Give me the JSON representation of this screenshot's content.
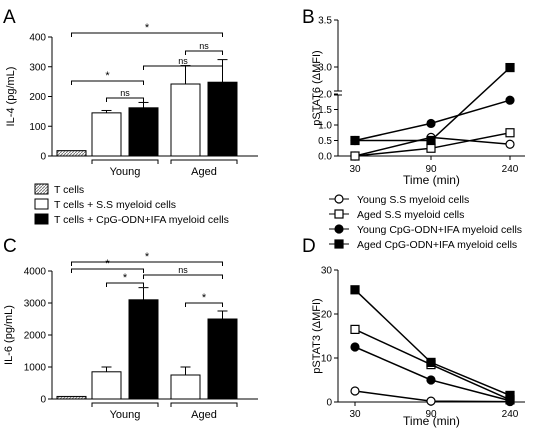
{
  "chart_data": [
    {
      "panel": "A",
      "type": "bar",
      "ylabel": "IL-4 (pg/mL)",
      "ylim": [
        0,
        400
      ],
      "yticks": [
        "0",
        "100",
        "200",
        "300",
        "400"
      ],
      "groups": [
        "Young",
        "Aged"
      ],
      "bars": [
        {
          "series": "T cells",
          "value": 18,
          "error": 0
        },
        {
          "series": "T cells + S.S myeloid cells",
          "group": "Young",
          "value": 145,
          "error": 8
        },
        {
          "series": "T cells + CpG-ODN+IFA myeloid cells",
          "group": "Young",
          "value": 162,
          "error": 18
        },
        {
          "series": "T cells + S.S myeloid cells",
          "group": "Aged",
          "value": 242,
          "error": 62
        },
        {
          "series": "T cells + CpG-ODN+IFA myeloid cells",
          "group": "Aged",
          "value": 248,
          "error": 76
        }
      ],
      "significance": [
        {
          "from": 0,
          "to": 4,
          "label": "*"
        },
        {
          "from": 2,
          "to": 4,
          "label": "ns"
        },
        {
          "from": 3,
          "to": 4,
          "label": "ns"
        },
        {
          "from": 0,
          "to": 2,
          "label": "*"
        },
        {
          "from": 1,
          "to": 2,
          "label": "ns"
        }
      ]
    },
    {
      "panel": "B",
      "type": "line",
      "ylabel": "pSTAT6 (ΔMFI)",
      "xlabel": "Time (min)",
      "x": [
        30,
        90,
        240
      ],
      "xticks": [
        "30",
        "90",
        "240"
      ],
      "yticks_lower": [
        "0.0",
        "0.5",
        "1.0",
        "1.5",
        "2.0"
      ],
      "yticks_upper": [
        "3.0",
        "3.5"
      ],
      "axis_break": [
        2.0,
        2.8
      ],
      "series": [
        {
          "name": "Young S.S myeloid cells",
          "values": [
            0.0,
            0.6,
            0.38
          ],
          "marker": "open-circle"
        },
        {
          "name": "Aged S.S myeloid cells",
          "values": [
            0.0,
            0.25,
            0.75
          ],
          "marker": "open-square"
        },
        {
          "name": "Young CpG-ODN+IFA myeloid cells",
          "values": [
            0.5,
            1.05,
            1.8
          ],
          "marker": "filled-circle"
        },
        {
          "name": "Aged CpG-ODN+IFA myeloid cells",
          "values": [
            0.5,
            0.5,
            3.05
          ],
          "marker": "filled-square"
        }
      ]
    },
    {
      "panel": "C",
      "type": "bar",
      "ylabel": "IL-6 (pg/mL)",
      "ylim": [
        0,
        4000
      ],
      "yticks": [
        "0",
        "1000",
        "2000",
        "3000",
        "4000"
      ],
      "groups": [
        "Young",
        "Aged"
      ],
      "bars": [
        {
          "series": "T cells",
          "value": 80,
          "error": 0
        },
        {
          "series": "T cells + S.S myeloid cells",
          "group": "Young",
          "value": 850,
          "error": 150
        },
        {
          "series": "T cells + CpG-ODN+IFA myeloid cells",
          "group": "Young",
          "value": 3100,
          "error": 380
        },
        {
          "series": "T cells + S.S myeloid cells",
          "group": "Aged",
          "value": 750,
          "error": 250
        },
        {
          "series": "T cells + CpG-ODN+IFA myeloid cells",
          "group": "Aged",
          "value": 2500,
          "error": 250
        }
      ],
      "significance": [
        {
          "from": 0,
          "to": 4,
          "label": "*"
        },
        {
          "from": 0,
          "to": 2,
          "label": "*"
        },
        {
          "from": 2,
          "to": 4,
          "label": "ns"
        },
        {
          "from": 1,
          "to": 2,
          "label": "*"
        },
        {
          "from": 3,
          "to": 4,
          "label": "*"
        }
      ]
    },
    {
      "panel": "D",
      "type": "line",
      "ylabel": "pSTAT3 (ΔMFI)",
      "xlabel": "Time (min)",
      "x": [
        30,
        90,
        240
      ],
      "xticks": [
        "30",
        "90",
        "240"
      ],
      "ylim": [
        0,
        30
      ],
      "yticks": [
        "0",
        "10",
        "20",
        "30"
      ],
      "series": [
        {
          "name": "Young S.S myeloid cells",
          "values": [
            2.5,
            0.2,
            0.1
          ],
          "marker": "open-circle"
        },
        {
          "name": "Aged S.S myeloid cells",
          "values": [
            16.5,
            8.5,
            0.5
          ],
          "marker": "open-square"
        },
        {
          "name": "Young CpG-ODN+IFA myeloid cells",
          "values": [
            12.5,
            5.0,
            0.3
          ],
          "marker": "filled-circle"
        },
        {
          "name": "Aged CpG-ODN+IFA myeloid cells",
          "values": [
            25.5,
            9.0,
            1.5
          ],
          "marker": "filled-square"
        }
      ]
    }
  ],
  "bar_legend": [
    {
      "label": "T cells",
      "fill": "hatched"
    },
    {
      "label": "T cells + S.S myeloid cells",
      "fill": "white"
    },
    {
      "label": "T cells + CpG-ODN+IFA myeloid cells",
      "fill": "black"
    }
  ],
  "line_legend": [
    {
      "label": "Young S.S myeloid cells",
      "marker": "open-circle"
    },
    {
      "label": "Aged S.S myeloid cells",
      "marker": "open-square"
    },
    {
      "label": "Young CpG-ODN+IFA myeloid cells",
      "marker": "filled-circle"
    },
    {
      "label": "Aged CpG-ODN+IFA myeloid cells",
      "marker": "filled-square"
    }
  ],
  "colors": {
    "ink": "#000000",
    "paper": "#ffffff",
    "hatch": "#888888"
  }
}
